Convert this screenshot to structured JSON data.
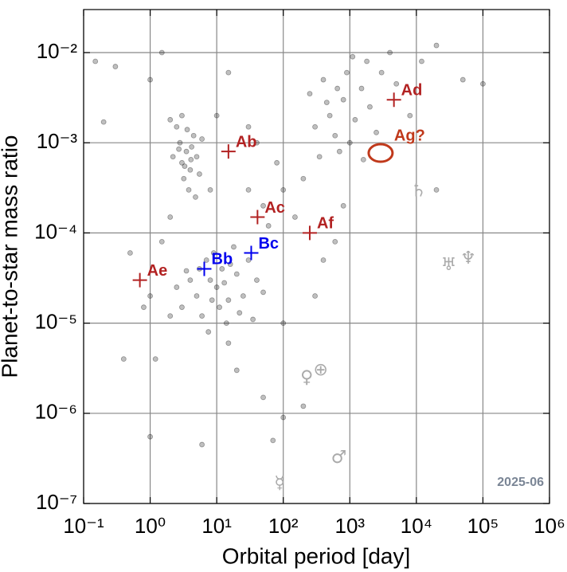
{
  "chart_data": {
    "type": "scatter",
    "xlabel": "Orbital period [day]",
    "ylabel": "Planet-to-star mass ratio",
    "xscale": "log",
    "yscale": "log",
    "xlim": [
      0.1,
      1000000
    ],
    "ylim": [
      1e-07,
      0.03
    ],
    "xticks": [
      {
        "value": 0.1,
        "label": "10⁻¹"
      },
      {
        "value": 1,
        "label": "10⁰"
      },
      {
        "value": 10,
        "label": "10¹"
      },
      {
        "value": 100,
        "label": "10²"
      },
      {
        "value": 1000,
        "label": "10³"
      },
      {
        "value": 10000,
        "label": "10⁴"
      },
      {
        "value": 100000,
        "label": "10⁵"
      },
      {
        "value": 1000000,
        "label": "10⁶"
      }
    ],
    "yticks": [
      {
        "value": 1e-07,
        "label": "10⁻⁷"
      },
      {
        "value": 1e-06,
        "label": "10⁻⁶"
      },
      {
        "value": 1e-05,
        "label": "10⁻⁵"
      },
      {
        "value": 0.0001,
        "label": "10⁻⁴"
      },
      {
        "value": 0.001,
        "label": "10⁻³"
      },
      {
        "value": 0.01,
        "label": "10⁻²"
      }
    ],
    "grid": true,
    "annotation": "2025-06",
    "series": [
      {
        "color": "#000000",
        "x": [
          3,
          3.5,
          4,
          2.8,
          4.5,
          3.2,
          5,
          2.5,
          3.8,
          4.2,
          3,
          6,
          2.2,
          4.8,
          3.6,
          5.5,
          2,
          3.3,
          4.1,
          2.7,
          5,
          8,
          10,
          15,
          3,
          20,
          7,
          12,
          4,
          25,
          6,
          9,
          30,
          14,
          2.5,
          18,
          11,
          40,
          5.5,
          8.5,
          13,
          22,
          3.5,
          16,
          2,
          50,
          7.5,
          35,
          300,
          500,
          800,
          1000,
          1500,
          2000,
          700,
          400,
          3000,
          1200,
          600,
          2500,
          900,
          250,
          1800,
          4000,
          350,
          5000,
          8000,
          1100,
          450,
          1600,
          650,
          12000,
          20000,
          0.15,
          0.3,
          1,
          1.5,
          0.2,
          50,
          100,
          80,
          200,
          30,
          150,
          60,
          400,
          1,
          0.5,
          0.8,
          1.2,
          0.4,
          20,
          50,
          100,
          1,
          6,
          70,
          15,
          100,
          300,
          20000,
          50000,
          100000,
          600,
          800,
          40,
          10,
          8,
          2,
          1.5,
          200,
          30,
          15
        ],
        "values": [
          0.0006,
          0.0008,
          0.0005,
          0.001,
          0.0012,
          0.0004,
          0.0007,
          0.0015,
          0.0003,
          0.0009,
          0.002,
          0.0011,
          0.0007,
          0.00025,
          0.0014,
          0.00045,
          0.0018,
          0.00055,
          0.00065,
          0.00085,
          2e-05,
          3e-05,
          2.5e-05,
          1.8e-05,
          1.5e-05,
          3.5e-05,
          5e-05,
          4e-05,
          3e-05,
          2e-05,
          1.2e-05,
          6e-05,
          5e-05,
          1e-05,
          2.5e-05,
          7e-05,
          1.5e-05,
          3e-05,
          4e-05,
          1.8e-05,
          2.8e-05,
          1.3e-05,
          3.8e-05,
          4.5e-05,
          1.2e-05,
          2.2e-05,
          8e-06,
          1.1e-05,
          0.0015,
          0.002,
          0.003,
          0.001,
          0.004,
          0.0025,
          0.0008,
          0.005,
          0.006,
          0.0018,
          0.0012,
          0.0013,
          0.006,
          0.0035,
          0.008,
          0.01,
          0.0007,
          0.0045,
          0.002,
          0.009,
          0.0028,
          0.00065,
          0.004,
          0.008,
          0.012,
          0.008,
          0.007,
          0.005,
          0.01,
          0.0017,
          0.0002,
          0.0003,
          0.0006,
          0.0004,
          0.0003,
          0.00015,
          0.00012,
          5e-05,
          2e-05,
          6e-05,
          1.5e-05,
          4e-06,
          4e-06,
          3e-06,
          1.5e-06,
          9e-07,
          5.5e-07,
          4.5e-07,
          5e-07,
          6e-06,
          1e-05,
          2e-05,
          0.0003,
          0.005,
          0.0045,
          8e-05,
          0.0002,
          0.001,
          0.002,
          0.0003,
          0.00015,
          8e-05,
          1.2e-06,
          0.0015,
          0.006
        ]
      }
    ],
    "planets": [
      {
        "name": "Ab",
        "x": 15,
        "y": 0.0008,
        "color": "#b22222"
      },
      {
        "name": "Ac",
        "x": 41,
        "y": 0.00015,
        "color": "#b22222"
      },
      {
        "name": "Ad",
        "x": 4600,
        "y": 0.003,
        "color": "#b22222"
      },
      {
        "name": "Ae",
        "x": 0.7,
        "y": 3e-05,
        "color": "#b22222"
      },
      {
        "name": "Af",
        "x": 250,
        "y": 0.0001,
        "color": "#b22222"
      },
      {
        "name": "Bb",
        "x": 6.5,
        "y": 4e-05,
        "color": "#0000ee"
      },
      {
        "name": "Bc",
        "x": 33,
        "y": 6e-05,
        "color": "#0000ee"
      }
    ],
    "candidate": {
      "name": "Ag?",
      "x": 2900,
      "y": 0.00077,
      "color": "#c0391b"
    },
    "solar_system": [
      {
        "name": "☿",
        "x": 88,
        "y": 1.66e-07
      },
      {
        "name": "♀",
        "x": 225,
        "y": 2.45e-06
      },
      {
        "name": "⊕",
        "x": 365,
        "y": 3e-06
      },
      {
        "name": "♂",
        "x": 687,
        "y": 3.2e-07
      },
      {
        "name": "♄",
        "x": 10759,
        "y": 0.000286
      },
      {
        "name": "♅",
        "x": 30687,
        "y": 4.4e-05
      },
      {
        "name": "♆",
        "x": 60190,
        "y": 5.15e-05
      }
    ]
  }
}
